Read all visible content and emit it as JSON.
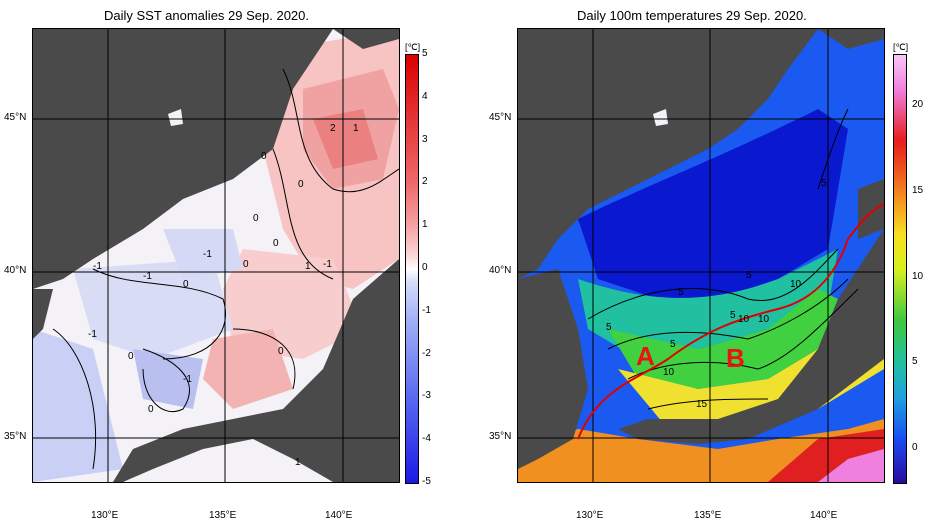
{
  "left_panel": {
    "title": "Daily SST anomalies 29 Sep. 2020.",
    "unit": "[℃]",
    "colorbar_ticks": [
      "5",
      "4",
      "3",
      "2",
      "1",
      "0",
      "-1",
      "-2",
      "-3",
      "-4",
      "-5"
    ],
    "colorbar_range": [
      -5,
      5
    ],
    "colorbar_colors": [
      "#1a1ae6",
      "#5a6af0",
      "#9fb0f5",
      "#d7defa",
      "#ffffff",
      "#fbd9d9",
      "#f5a3a3",
      "#ef6a6a",
      "#e53535",
      "#d90000"
    ],
    "contour_labels": [
      "2",
      "1",
      "0",
      "0",
      "0",
      "0",
      "1",
      "0",
      "-1",
      "-1",
      "-1",
      "-1",
      "0",
      "0",
      "0",
      "-1",
      "0",
      "-1",
      "1"
    ]
  },
  "right_panel": {
    "title": "Daily 100m temperatures 29 Sep. 2020.",
    "unit": "[℃]",
    "colorbar_ticks": [
      "20",
      "15",
      "10",
      "5",
      "0"
    ],
    "colorbar_range": [
      -2,
      23
    ],
    "contour_labels": [
      "5",
      "5",
      "5",
      "5",
      "5",
      "10",
      "10",
      "10",
      "10",
      "15",
      "5"
    ],
    "region_labels": [
      "A",
      "B"
    ]
  },
  "axes": {
    "lat_labels": [
      "45°N",
      "40°N",
      "35°N"
    ],
    "lon_labels": [
      "130°E",
      "135°E",
      "140°E"
    ]
  },
  "colors": {
    "land": "#4a4a4a",
    "grid": "#000000",
    "front_line": "#e00000"
  }
}
